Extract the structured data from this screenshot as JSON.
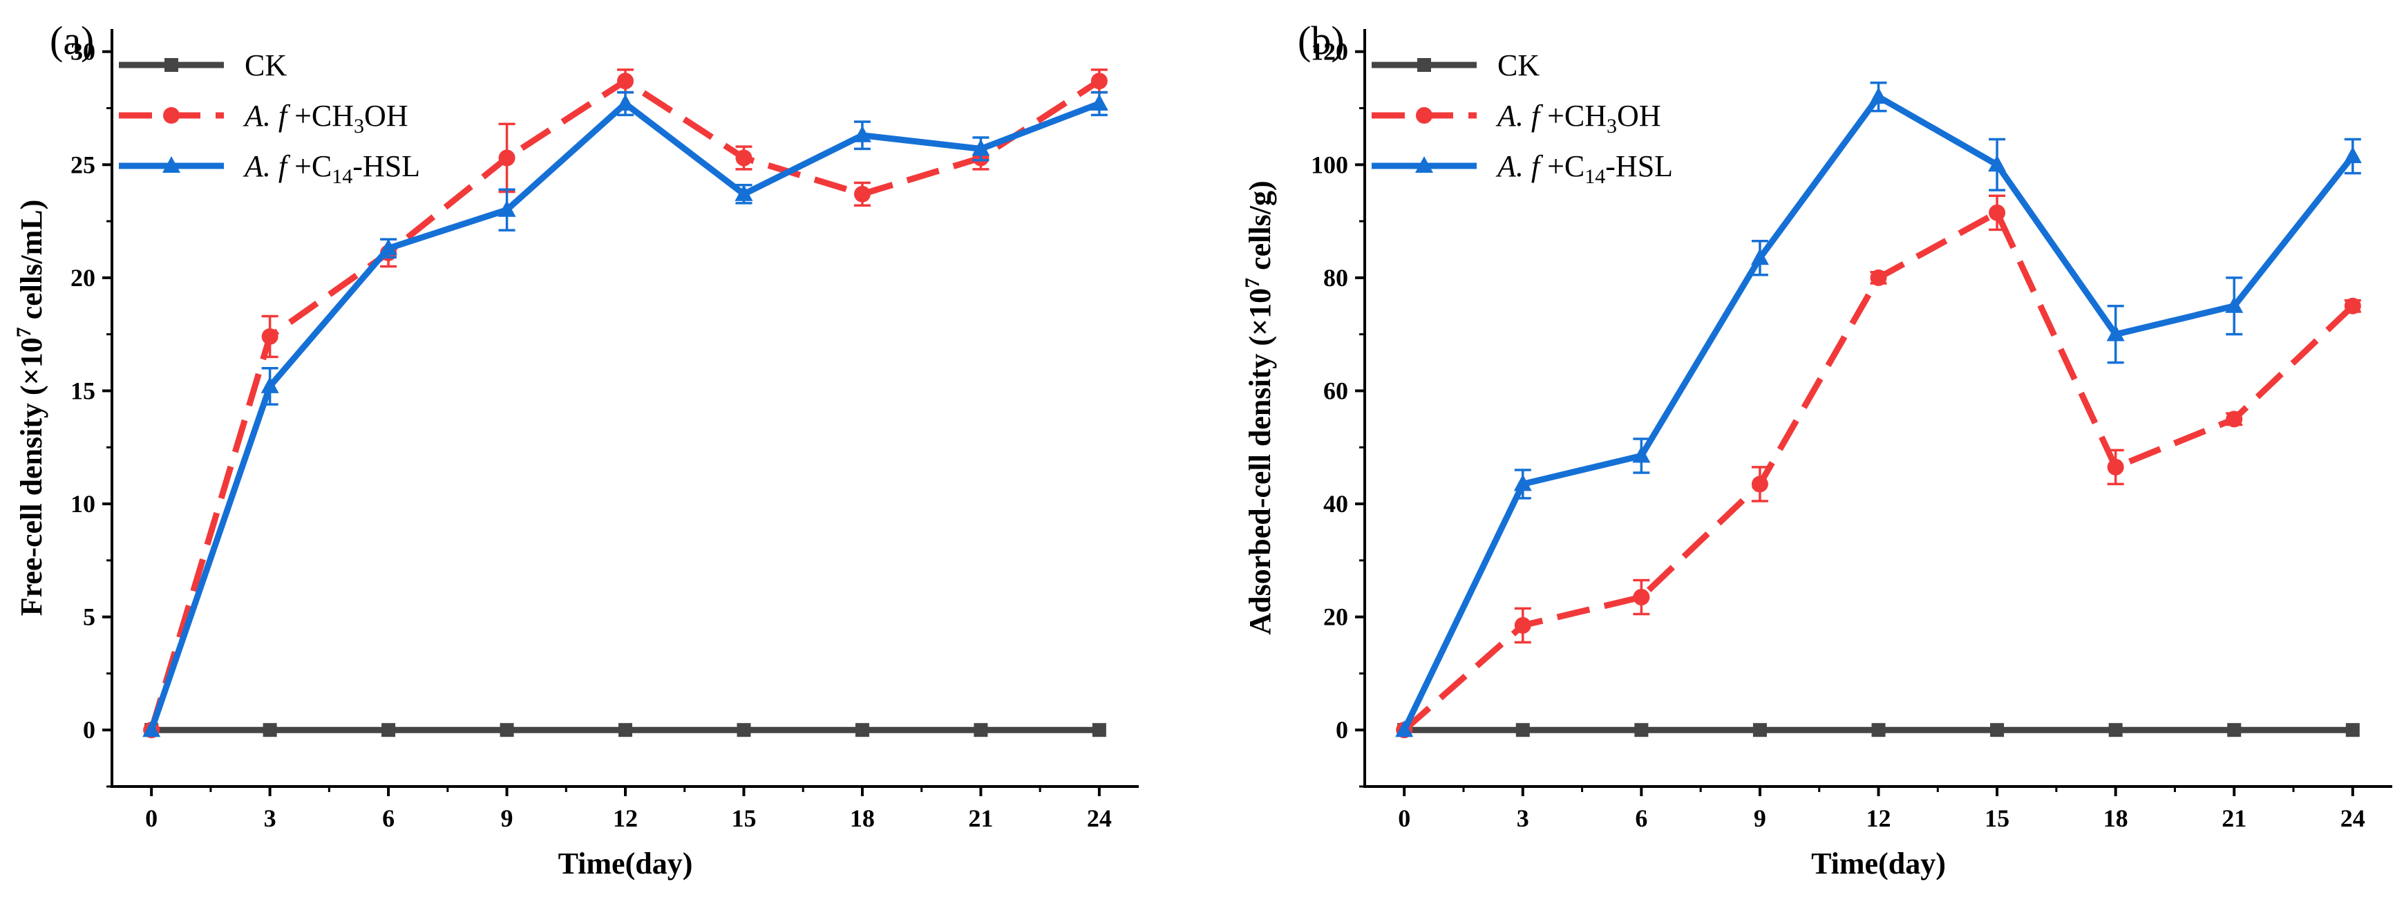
{
  "colors": {
    "CK": "#454545",
    "CH3OH": "#f2393a",
    "C14HSL": "#1570d6",
    "axis": "#000000"
  },
  "chart_data": [
    {
      "panel": "(a)",
      "type": "line",
      "xlabel": "Time(day)",
      "ylabel": {
        "pre": "Free-cell density (×10",
        "sup": "7",
        "post": " cells/mL)"
      },
      "xlim": [
        -1,
        25
      ],
      "ylim": [
        -2.5,
        31
      ],
      "xticks": [
        0,
        3,
        6,
        9,
        12,
        15,
        18,
        21,
        24
      ],
      "yticks": [
        0,
        5,
        10,
        15,
        20,
        25,
        30
      ],
      "legend_position": "top-left",
      "series": [
        {
          "key": "CK",
          "legend_parts": [
            {
              "t": "CK",
              "style": "normal"
            }
          ],
          "marker": "square",
          "dash": "solid",
          "x": [
            0,
            3,
            6,
            9,
            12,
            15,
            18,
            21,
            24
          ],
          "y": [
            0,
            0,
            0,
            0,
            0,
            0,
            0,
            0,
            0
          ],
          "err": [
            0,
            0,
            0,
            0,
            0,
            0,
            0,
            0,
            0
          ]
        },
        {
          "key": "CH3OH",
          "legend_parts": [
            {
              "t": "A. f",
              "style": "italic"
            },
            {
              "t": " +CH",
              "style": "normal"
            },
            {
              "t": "3",
              "style": "sub"
            },
            {
              "t": "OH",
              "style": "normal"
            }
          ],
          "marker": "circle",
          "dash": "dashed",
          "x": [
            0,
            3,
            6,
            9,
            12,
            15,
            18,
            21,
            24
          ],
          "y": [
            0,
            17.4,
            21.1,
            25.3,
            28.7,
            25.3,
            23.7,
            25.3,
            28.7
          ],
          "err": [
            0,
            0.9,
            0.6,
            1.5,
            0.5,
            0.5,
            0.5,
            0.5,
            0.5
          ]
        },
        {
          "key": "C14HSL",
          "legend_parts": [
            {
              "t": "A. f",
              "style": "italic"
            },
            {
              "t": " +C",
              "style": "normal"
            },
            {
              "t": "14",
              "style": "sub"
            },
            {
              "t": "-HSL",
              "style": "normal"
            }
          ],
          "marker": "triangle",
          "dash": "solid",
          "x": [
            0,
            3,
            6,
            9,
            12,
            15,
            18,
            21,
            24
          ],
          "y": [
            0,
            15.2,
            21.3,
            23.0,
            27.7,
            23.7,
            26.3,
            25.7,
            27.7
          ],
          "err": [
            0,
            0.8,
            0.4,
            0.9,
            0.5,
            0.4,
            0.6,
            0.5,
            0.5
          ]
        }
      ]
    },
    {
      "panel": "(b)",
      "type": "line",
      "xlabel": "Time(day)",
      "ylabel": {
        "pre": "Adsorbed-cell density (×10",
        "sup": "7",
        "post": " cells/g)"
      },
      "xlim": [
        -1,
        25
      ],
      "ylim": [
        -10,
        124
      ],
      "xticks": [
        0,
        3,
        6,
        9,
        12,
        15,
        18,
        21,
        24
      ],
      "yticks": [
        0,
        20,
        40,
        60,
        80,
        100,
        120
      ],
      "legend_position": "top-left",
      "series": [
        {
          "key": "CK",
          "legend_parts": [
            {
              "t": "CK",
              "style": "normal"
            }
          ],
          "marker": "square",
          "dash": "solid",
          "x": [
            0,
            3,
            6,
            9,
            12,
            15,
            18,
            21,
            24
          ],
          "y": [
            0,
            0,
            0,
            0,
            0,
            0,
            0,
            0,
            0
          ],
          "err": [
            0,
            0,
            0,
            0,
            0,
            0,
            0,
            0,
            0
          ]
        },
        {
          "key": "CH3OH",
          "legend_parts": [
            {
              "t": "A. f",
              "style": "italic"
            },
            {
              "t": " +CH",
              "style": "normal"
            },
            {
              "t": "3",
              "style": "sub"
            },
            {
              "t": "OH",
              "style": "normal"
            }
          ],
          "marker": "circle",
          "dash": "dashed",
          "x": [
            0,
            3,
            6,
            9,
            12,
            15,
            18,
            21,
            24
          ],
          "y": [
            0,
            18.5,
            23.5,
            43.5,
            80.0,
            91.5,
            46.5,
            55.0,
            75.0
          ],
          "err": [
            0,
            3.0,
            3.0,
            3.0,
            1.0,
            3.0,
            3.0,
            1.0,
            1.0
          ]
        },
        {
          "key": "C14HSL",
          "legend_parts": [
            {
              "t": "A. f",
              "style": "italic"
            },
            {
              "t": " +C",
              "style": "normal"
            },
            {
              "t": "14",
              "style": "sub"
            },
            {
              "t": "-HSL",
              "style": "normal"
            }
          ],
          "marker": "triangle",
          "dash": "solid",
          "x": [
            0,
            3,
            6,
            9,
            12,
            15,
            18,
            21,
            24
          ],
          "y": [
            0,
            43.5,
            48.5,
            83.5,
            112.0,
            100.0,
            70.0,
            75.0,
            101.5
          ],
          "err": [
            0,
            2.5,
            3.0,
            3.0,
            2.5,
            4.5,
            5.0,
            5.0,
            3.0
          ]
        }
      ]
    }
  ]
}
